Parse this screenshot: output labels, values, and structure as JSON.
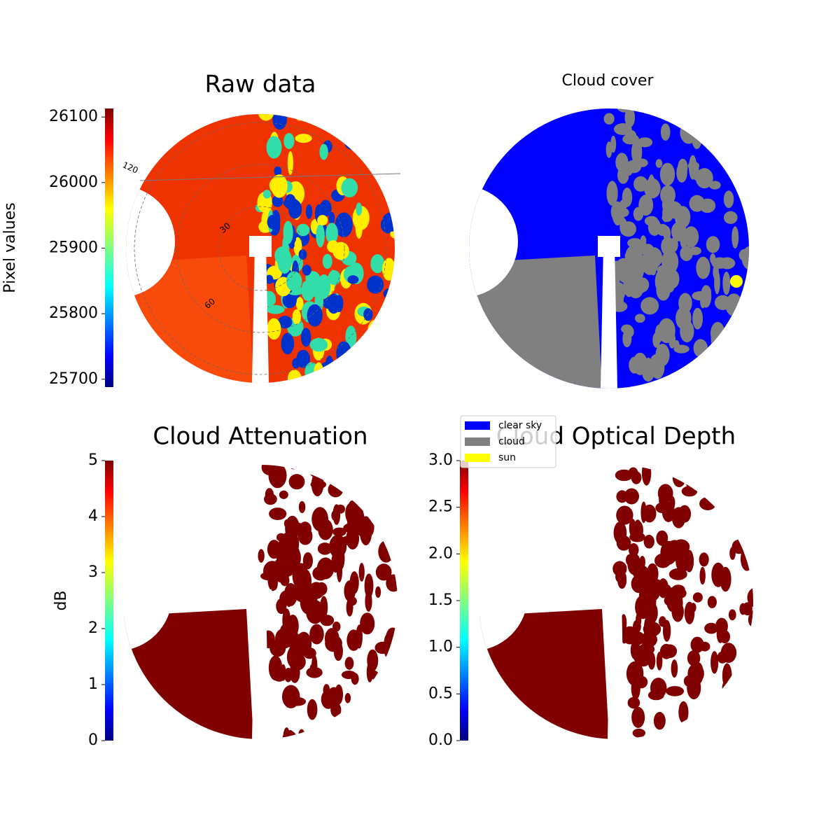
{
  "chart_data": [
    {
      "type": "image",
      "title": "Raw data",
      "polar_labels": [
        "120",
        "30",
        "60"
      ],
      "colorbar": {
        "label": "Pixel values",
        "colormap": "jet",
        "lim": [
          25688,
          26113
        ],
        "ticks": [
          25700,
          25800,
          25900,
          26000,
          26100
        ]
      }
    },
    {
      "type": "image",
      "title": "Cloud cover",
      "legend": [
        {
          "name": "clear sky",
          "color": "#0000ff"
        },
        {
          "name": "cloud",
          "color": "#808080"
        },
        {
          "name": "sun",
          "color": "#ffff00"
        }
      ]
    },
    {
      "type": "image",
      "title": "Cloud Attenuation",
      "colorbar": {
        "label": "dB",
        "colormap": "jet",
        "lim": [
          0,
          5
        ],
        "ticks": [
          0,
          1,
          2,
          3,
          4,
          5
        ]
      }
    },
    {
      "type": "image",
      "title": "Cloud Optical Depth",
      "colorbar": {
        "colormap": "jet",
        "lim": [
          0,
          3
        ],
        "ticks": [
          {
            "value": 0,
            "label": "0.0"
          },
          {
            "value": 0.5,
            "label": "0.5"
          },
          {
            "value": 1,
            "label": "1.0"
          },
          {
            "value": 1.5,
            "label": "1.5"
          },
          {
            "value": 2,
            "label": "2.0"
          },
          {
            "value": 2.5,
            "label": "2.5"
          },
          {
            "value": 3,
            "label": "3.0"
          }
        ]
      }
    }
  ]
}
